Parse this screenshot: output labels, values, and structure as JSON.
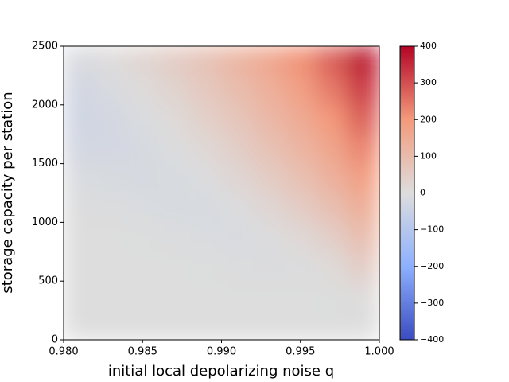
{
  "chart_data": {
    "type": "heatmap",
    "xlabel": "initial local depolarizing noise q",
    "ylabel": "storage capacity per station",
    "x": [
      0.981,
      0.983,
      0.985,
      0.987,
      0.989,
      0.991,
      0.993,
      0.995,
      0.997,
      0.999
    ],
    "y": [
      125,
      375,
      625,
      875,
      1125,
      1375,
      1625,
      1875,
      2125,
      2375
    ],
    "z": [
      [
        0,
        0,
        0,
        0,
        0,
        0,
        0,
        0,
        0,
        0
      ],
      [
        0,
        0,
        0,
        0,
        0,
        0,
        0,
        0,
        -2,
        5
      ],
      [
        0,
        0,
        0,
        0,
        -2,
        -5,
        -8,
        -5,
        10,
        50
      ],
      [
        0,
        0,
        -2,
        -5,
        -10,
        -12,
        -5,
        15,
        45,
        95
      ],
      [
        -3,
        -5,
        -10,
        -15,
        -15,
        -5,
        20,
        50,
        90,
        140
      ],
      [
        -10,
        -15,
        -20,
        -15,
        -5,
        20,
        50,
        85,
        130,
        185
      ],
      [
        -25,
        -25,
        -20,
        -5,
        15,
        45,
        80,
        120,
        165,
        230
      ],
      [
        -35,
        -25,
        -10,
        10,
        40,
        70,
        110,
        150,
        200,
        280
      ],
      [
        -30,
        -15,
        5,
        30,
        60,
        95,
        135,
        180,
        240,
        330
      ],
      [
        -15,
        5,
        25,
        50,
        80,
        120,
        160,
        210,
        280,
        380
      ]
    ],
    "xlim": [
      0.98,
      1.0
    ],
    "xticks": [
      {
        "value": 0.98,
        "label": "0.980"
      },
      {
        "value": 0.985,
        "label": "0.985"
      },
      {
        "value": 0.99,
        "label": "0.990"
      },
      {
        "value": 0.995,
        "label": "0.995"
      },
      {
        "value": 1.0,
        "label": "1.000"
      }
    ],
    "ylim": [
      0,
      2500
    ],
    "yticks": [
      0,
      500,
      1000,
      1500,
      2000,
      2500
    ],
    "colormap": [
      "#3b4cc0",
      "#8db0fe",
      "#dddddd",
      "#f49a7b",
      "#b40426"
    ],
    "clim": [
      -400,
      400
    ],
    "cticks": [
      {
        "value": -400,
        "label": "−400"
      },
      {
        "value": -300,
        "label": "−300"
      },
      {
        "value": -200,
        "label": "−200"
      },
      {
        "value": -100,
        "label": "−100"
      },
      0,
      100,
      200,
      300,
      400
    ]
  }
}
